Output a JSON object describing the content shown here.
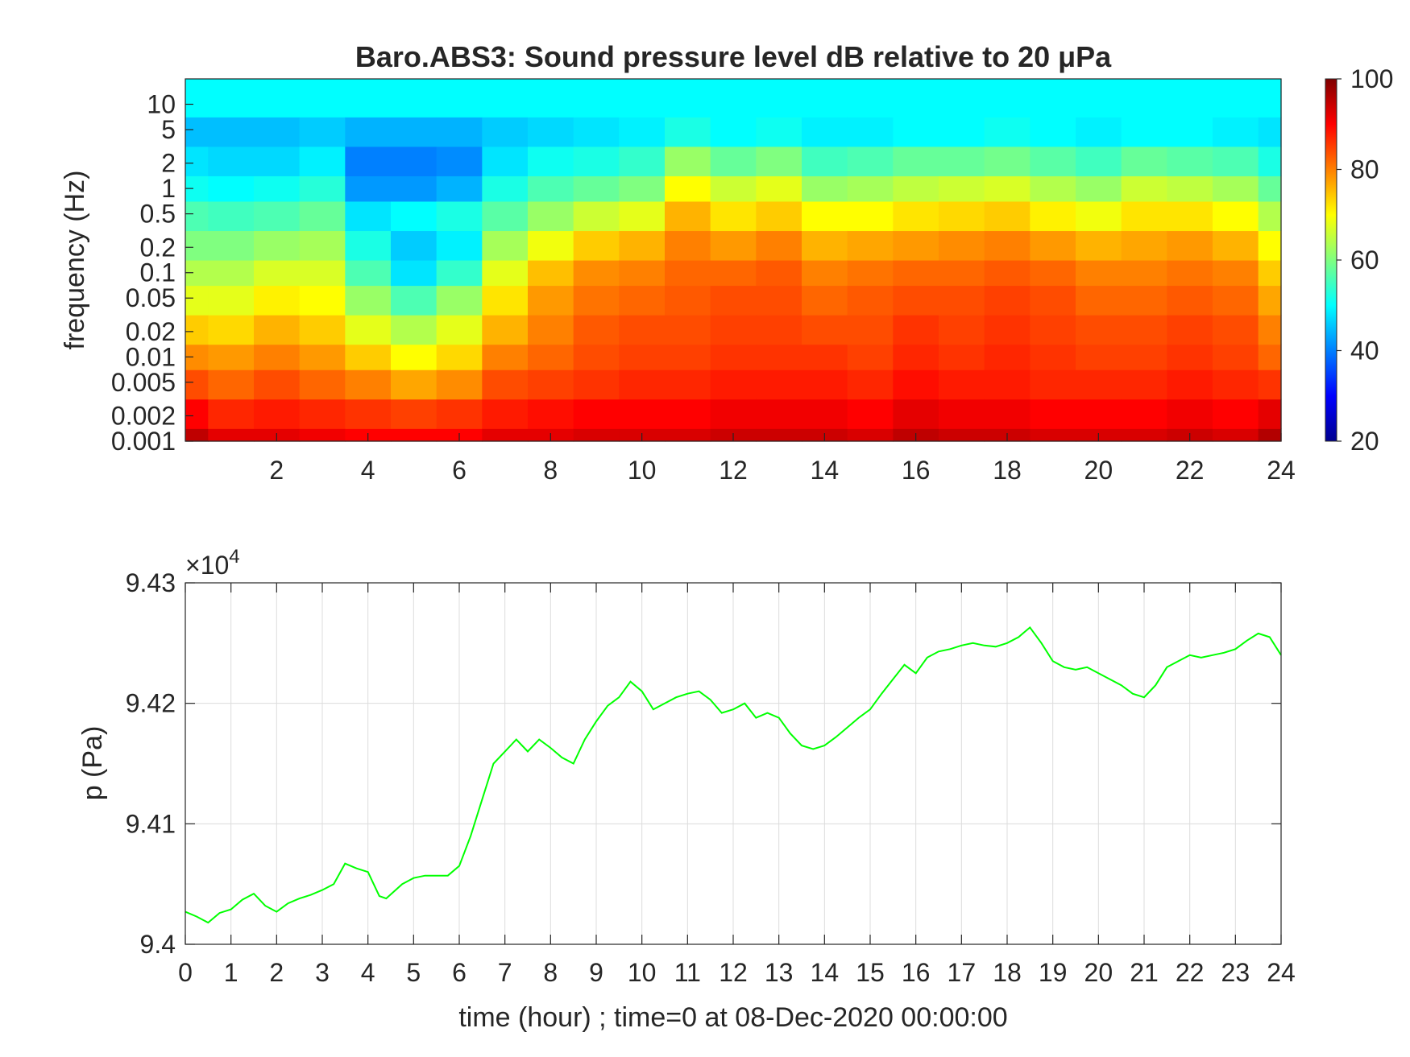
{
  "colors": {
    "line": "#00ff00",
    "axis": "#262626",
    "grid": "#dcdcdc",
    "background": "#ffffff",
    "colormap": "jet"
  },
  "chart_data": [
    {
      "type": "heatmap",
      "title": "Baro.ABS3: Sound pressure level dB relative to 20 μPa",
      "xlabel": "",
      "ylabel": "frequency (Hz)",
      "x_scale": "linear",
      "y_scale": "log",
      "xlim": [
        0,
        24
      ],
      "ylim": [
        0.001,
        20
      ],
      "x_ticks": [
        "2",
        "4",
        "6",
        "8",
        "10",
        "12",
        "14",
        "16",
        "18",
        "20",
        "22",
        "24"
      ],
      "y_ticks": [
        {
          "value": 0.001,
          "label": "0.001"
        },
        {
          "value": 0.002,
          "label": "0.002"
        },
        {
          "value": 0.005,
          "label": "0.005"
        },
        {
          "value": 0.01,
          "label": "0.01"
        },
        {
          "value": 0.02,
          "label": "0.02"
        },
        {
          "value": 0.05,
          "label": "0.05"
        },
        {
          "value": 0.1,
          "label": "0.1"
        },
        {
          "value": 0.2,
          "label": "0.2"
        },
        {
          "value": 0.5,
          "label": "0.5"
        },
        {
          "value": 1,
          "label": "1"
        },
        {
          "value": 2,
          "label": "2"
        },
        {
          "value": 5,
          "label": "5"
        },
        {
          "value": 10,
          "label": "10"
        }
      ],
      "colorbar": {
        "range": [
          20,
          100
        ],
        "ticks": [
          "20",
          "40",
          "60",
          "80",
          "100"
        ]
      },
      "time_hours": [
        0,
        1,
        2,
        3,
        4,
        5,
        6,
        7,
        8,
        9,
        10,
        11,
        12,
        13,
        14,
        15,
        16,
        17,
        18,
        19,
        20,
        21,
        22,
        23,
        24
      ],
      "frequencies_hz": [
        0.001,
        0.002,
        0.005,
        0.01,
        0.02,
        0.05,
        0.1,
        0.2,
        0.5,
        1,
        2,
        5,
        10,
        20
      ],
      "level_db": [
        [
          95,
          90,
          84,
          79,
          74,
          68,
          64,
          60,
          56,
          51,
          48,
          45,
          50,
          50
        ],
        [
          92,
          87,
          82,
          78,
          73,
          68,
          64,
          60,
          55,
          50,
          47,
          45,
          50,
          50
        ],
        [
          92,
          88,
          84,
          80,
          76,
          71,
          67,
          62,
          56,
          51,
          47,
          45,
          50,
          50
        ],
        [
          91,
          87,
          82,
          78,
          74,
          70,
          67,
          63,
          58,
          53,
          49,
          46,
          50,
          50
        ],
        [
          90,
          86,
          80,
          74,
          68,
          62,
          56,
          52,
          48,
          42,
          40,
          44,
          50,
          50
        ],
        [
          90,
          85,
          77,
          70,
          64,
          56,
          48,
          46,
          50,
          42,
          40,
          44,
          50,
          50
        ],
        [
          90,
          86,
          79,
          73,
          68,
          62,
          54,
          49,
          52,
          44,
          41,
          44,
          50,
          50
        ],
        [
          92,
          88,
          84,
          80,
          76,
          72,
          68,
          63,
          57,
          52,
          48,
          46,
          50,
          50
        ],
        [
          92,
          89,
          85,
          82,
          80,
          78,
          75,
          69,
          62,
          56,
          51,
          47,
          50,
          50
        ],
        [
          93,
          90,
          86,
          84,
          83,
          81,
          79,
          74,
          66,
          58,
          52,
          48,
          50,
          50
        ],
        [
          93,
          90,
          87,
          85,
          84,
          82,
          80,
          76,
          68,
          60,
          54,
          49,
          50,
          50
        ],
        [
          93,
          90,
          87,
          85,
          84,
          83,
          82,
          80,
          76,
          70,
          62,
          52,
          50,
          50
        ],
        [
          94,
          91,
          88,
          86,
          85,
          84,
          82,
          78,
          72,
          66,
          58,
          50,
          50,
          50
        ],
        [
          94,
          91,
          88,
          86,
          85,
          84,
          83,
          80,
          74,
          68,
          60,
          51,
          50,
          50
        ],
        [
          94,
          91,
          88,
          86,
          84,
          82,
          80,
          76,
          70,
          62,
          55,
          49,
          50,
          50
        ],
        [
          93,
          90,
          87,
          85,
          84,
          83,
          81,
          77,
          70,
          63,
          56,
          49,
          50,
          50
        ],
        [
          95,
          92,
          89,
          87,
          86,
          84,
          82,
          78,
          72,
          65,
          58,
          50,
          50,
          50
        ],
        [
          94,
          91,
          88,
          86,
          85,
          84,
          82,
          79,
          73,
          66,
          58,
          50,
          50,
          50
        ],
        [
          94,
          91,
          88,
          87,
          86,
          85,
          83,
          80,
          74,
          67,
          59,
          51,
          50,
          50
        ],
        [
          93,
          90,
          87,
          86,
          85,
          84,
          82,
          78,
          71,
          64,
          57,
          50,
          50,
          50
        ],
        [
          93,
          90,
          87,
          85,
          84,
          82,
          80,
          76,
          69,
          62,
          55,
          49,
          50,
          50
        ],
        [
          93,
          90,
          87,
          85,
          84,
          82,
          80,
          77,
          72,
          66,
          58,
          50,
          50,
          50
        ],
        [
          94,
          91,
          88,
          86,
          85,
          83,
          81,
          78,
          72,
          65,
          57,
          50,
          50,
          50
        ],
        [
          93,
          90,
          87,
          85,
          84,
          82,
          80,
          76,
          70,
          63,
          56,
          49,
          50,
          50
        ],
        [
          96,
          92,
          86,
          82,
          80,
          77,
          74,
          70,
          64,
          58,
          52,
          48,
          50,
          50
        ]
      ]
    },
    {
      "type": "line",
      "title": "",
      "xlabel": "time (hour) ; time=0 at 08-Dec-2020 00:00:00",
      "ylabel": "p (Pa)",
      "exponent_label": "×10",
      "exponent_power": "4",
      "xlim": [
        0,
        24
      ],
      "ylim": [
        9.4,
        9.43
      ],
      "x_ticks": [
        "0",
        "1",
        "2",
        "3",
        "4",
        "5",
        "6",
        "7",
        "8",
        "9",
        "10",
        "11",
        "12",
        "13",
        "14",
        "15",
        "16",
        "17",
        "18",
        "19",
        "20",
        "21",
        "22",
        "23",
        "24"
      ],
      "y_ticks": [
        {
          "value": 9.4,
          "label": "9.4"
        },
        {
          "value": 9.41,
          "label": "9.41"
        },
        {
          "value": 9.42,
          "label": "9.42"
        },
        {
          "value": 9.43,
          "label": "9.43"
        }
      ],
      "grid": true,
      "series": [
        {
          "x": [
            0,
            0.25,
            0.5,
            0.75,
            1.0,
            1.25,
            1.5,
            1.75,
            2.0,
            2.25,
            2.5,
            2.75,
            3.0,
            3.25,
            3.5,
            3.75,
            4.0,
            4.25,
            4.4,
            4.75,
            5.0,
            5.25,
            5.5,
            5.75,
            6.0,
            6.25,
            6.5,
            6.75,
            7.0,
            7.25,
            7.5,
            7.75,
            8.0,
            8.25,
            8.5,
            8.75,
            9.0,
            9.25,
            9.5,
            9.75,
            10.0,
            10.25,
            10.5,
            10.75,
            11.0,
            11.25,
            11.5,
            11.75,
            12.0,
            12.25,
            12.5,
            12.75,
            13.0,
            13.25,
            13.5,
            13.75,
            14.0,
            14.25,
            14.5,
            14.75,
            15.0,
            15.25,
            15.5,
            15.75,
            16.0,
            16.25,
            16.5,
            16.75,
            17.0,
            17.25,
            17.5,
            17.75,
            18.0,
            18.25,
            18.5,
            18.75,
            19.0,
            19.25,
            19.5,
            19.75,
            20.0,
            20.25,
            20.5,
            20.75,
            21.0,
            21.25,
            21.5,
            21.75,
            22.0,
            22.25,
            22.5,
            22.75,
            23.0,
            23.25,
            23.5,
            23.75,
            24.0
          ],
          "y": [
            9.4027,
            9.4023,
            9.4018,
            9.4026,
            9.4029,
            9.4037,
            9.4042,
            9.4032,
            9.4027,
            9.4034,
            9.4038,
            9.4041,
            9.4045,
            9.405,
            9.4067,
            9.4063,
            9.406,
            9.404,
            9.4038,
            9.405,
            9.4055,
            9.4057,
            9.4057,
            9.4057,
            9.4065,
            9.409,
            9.412,
            9.415,
            9.416,
            9.417,
            9.416,
            9.417,
            9.4163,
            9.4155,
            9.415,
            9.417,
            9.4185,
            9.4198,
            9.4205,
            9.4218,
            9.421,
            9.4195,
            9.42,
            9.4205,
            9.4208,
            9.421,
            9.4203,
            9.4192,
            9.4195,
            9.42,
            9.4188,
            9.4192,
            9.4188,
            9.4175,
            9.4165,
            9.4162,
            9.4165,
            9.4172,
            9.418,
            9.4188,
            9.4195,
            9.4208,
            9.422,
            9.4232,
            9.4225,
            9.4238,
            9.4243,
            9.4245,
            9.4248,
            9.425,
            9.4248,
            9.4247,
            9.425,
            9.4255,
            9.4263,
            9.425,
            9.4235,
            9.423,
            9.4228,
            9.423,
            9.4225,
            9.422,
            9.4215,
            9.4208,
            9.4205,
            9.4215,
            9.423,
            9.4235,
            9.424,
            9.4238,
            9.424,
            9.4242,
            9.4245,
            9.4252,
            9.4258,
            9.4255,
            9.424
          ]
        }
      ]
    }
  ]
}
